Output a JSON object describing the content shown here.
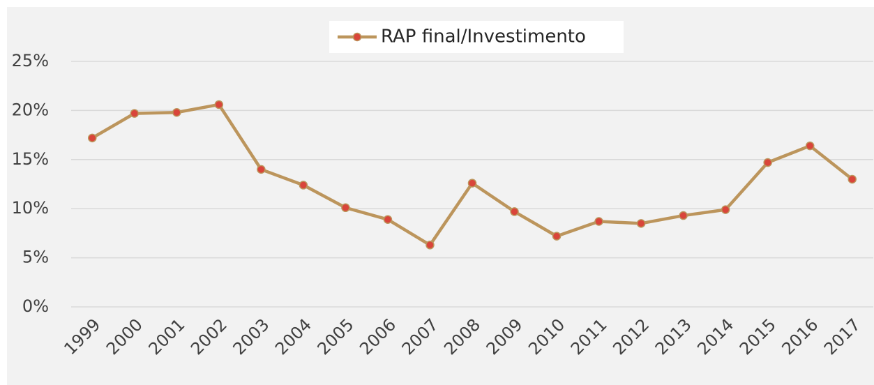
{
  "chart_data": {
    "type": "line",
    "categories": [
      "1999",
      "2000",
      "2001",
      "2002",
      "2003",
      "2004",
      "2005",
      "2006",
      "2007",
      "2008",
      "2009",
      "2010",
      "2011",
      "2012",
      "2013",
      "2014",
      "2015",
      "2016",
      "2017"
    ],
    "series": [
      {
        "name": "RAP final/Investimento",
        "color": "#bc955c",
        "marker_color": "#d9453a",
        "values": [
          17.2,
          19.7,
          19.8,
          20.6,
          14.0,
          12.4,
          10.1,
          8.9,
          6.3,
          12.6,
          9.7,
          7.2,
          8.7,
          8.5,
          9.3,
          9.9,
          14.7,
          16.4,
          13.0
        ]
      }
    ],
    "ylim": [
      0,
      25
    ],
    "yticks": [
      {
        "value": 0,
        "label": "0%"
      },
      {
        "value": 5,
        "label": "5%"
      },
      {
        "value": 10,
        "label": "10%"
      },
      {
        "value": 15,
        "label": "15%"
      },
      {
        "value": 20,
        "label": "20%"
      },
      {
        "value": 25,
        "label": "25%"
      }
    ],
    "grid": true,
    "legend": "top"
  }
}
